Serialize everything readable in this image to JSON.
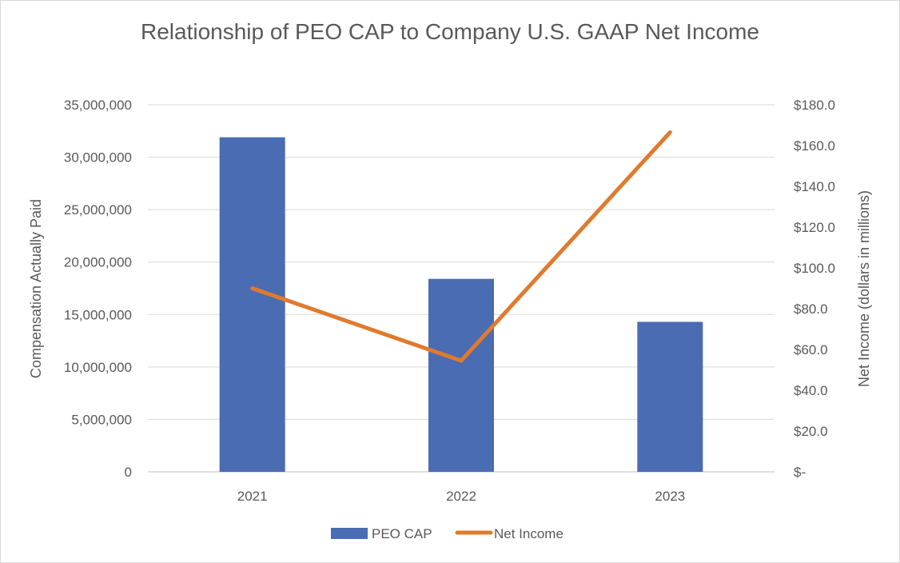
{
  "chart_data": {
    "type": "bar",
    "title": "Relationship of PEO CAP to Company U.S. GAAP Net Income",
    "categories": [
      "2021",
      "2022",
      "2023"
    ],
    "ylabel": "Compensation Actually Paid",
    "y2label": "Net Income (dollars in millions)",
    "ylim": [
      0,
      35000000
    ],
    "y2lim": [
      0,
      180
    ],
    "y_ticks": [
      "0",
      "5,000,000",
      "10,000,000",
      "15,000,000",
      "20,000,000",
      "25,000,000",
      "30,000,000",
      "35,000,000"
    ],
    "y2_ticks": [
      "$-",
      "$20.0",
      "$40.0",
      "$60.0",
      "$80.0",
      "$100.0",
      "$120.0",
      "$140.0",
      "$160.0",
      "$180.0"
    ],
    "grid": true,
    "legend_position": "bottom",
    "series": [
      {
        "name": "PEO CAP",
        "type": "bar",
        "axis": "left",
        "color": "#4a6cb3",
        "values": [
          31900000,
          18400000,
          14300000
        ]
      },
      {
        "name": "Net Income",
        "type": "line",
        "axis": "right",
        "color": "#e07a2e",
        "values": [
          90.0,
          54.5,
          166.5
        ]
      }
    ]
  }
}
